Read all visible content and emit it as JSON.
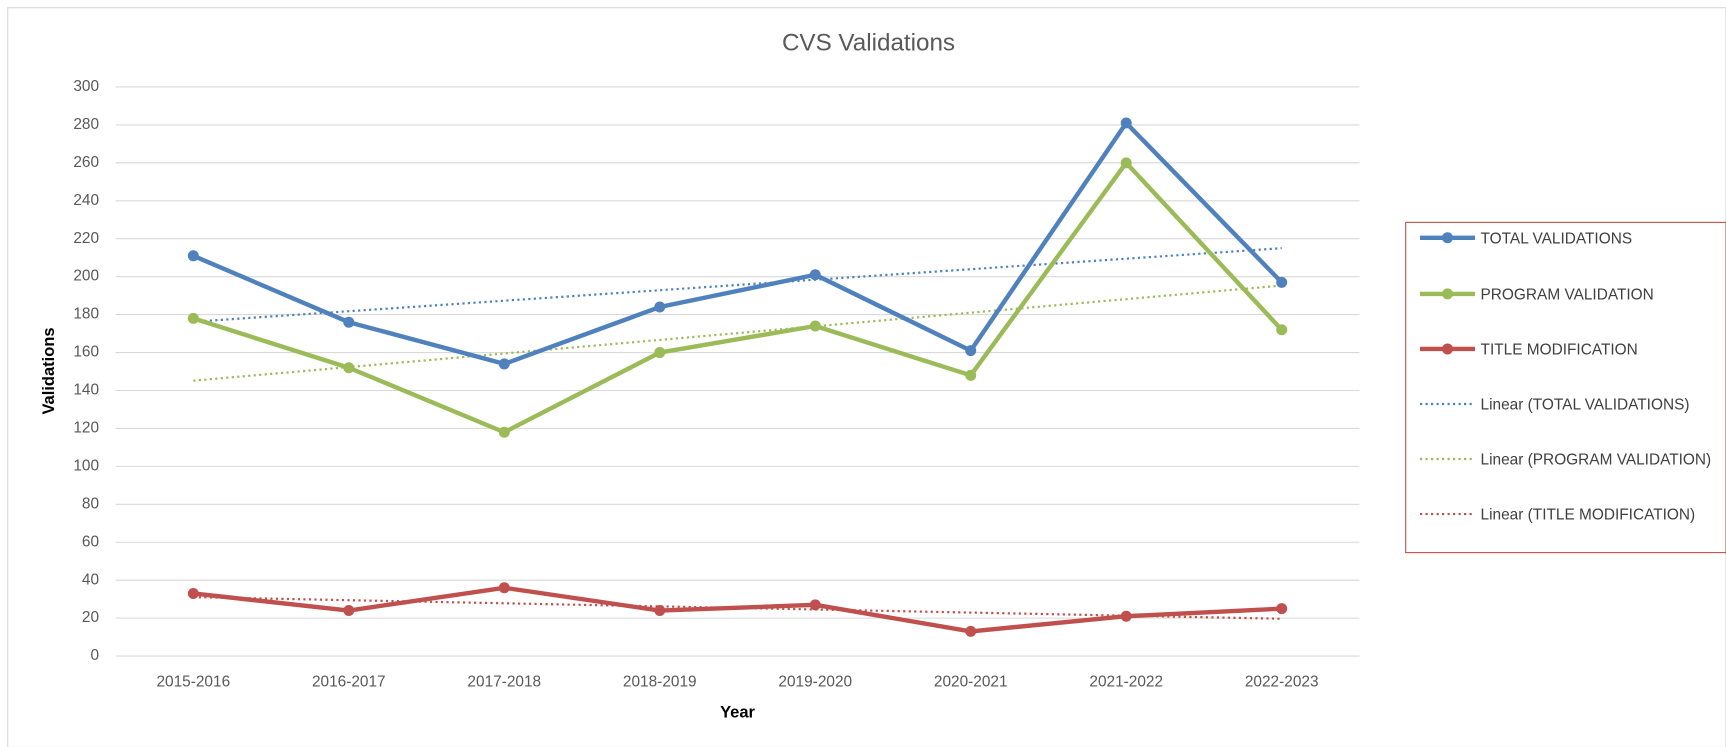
{
  "chart_data": {
    "type": "line",
    "title": "CVS Validations",
    "x_label": "Year",
    "y_label": "Validations",
    "categories": [
      "2015-2016",
      "2016-2017",
      "2017-2018",
      "2018-2019",
      "2019-2020",
      "2020-2021",
      "2021-2022",
      "2022-2023"
    ],
    "series": [
      {
        "name": "TOTAL VALIDATIONS",
        "color": "#4f81bd",
        "values": [
          211,
          176,
          154,
          184,
          201,
          161,
          281,
          197
        ]
      },
      {
        "name": "PROGRAM VALIDATION",
        "color": "#9bbb59",
        "values": [
          178,
          152,
          118,
          160,
          174,
          148,
          260,
          172
        ]
      },
      {
        "name": "TITLE MODIFICATION",
        "color": "#c0504d",
        "values": [
          33,
          24,
          36,
          24,
          27,
          13,
          21,
          25
        ]
      }
    ],
    "trendlines": [
      {
        "name": "Linear (TOTAL VALIDATIONS)",
        "series": 0,
        "color": "#4f81bd"
      },
      {
        "name": "Linear (PROGRAM VALIDATION)",
        "series": 1,
        "color": "#9bbb59"
      },
      {
        "name": "Linear (TITLE MODIFICATION)",
        "series": 2,
        "color": "#c0504d"
      }
    ],
    "ylim": [
      0,
      300
    ],
    "yticks": [
      0,
      20,
      40,
      60,
      80,
      100,
      120,
      140,
      160,
      180,
      200,
      220,
      240,
      260,
      280,
      300
    ],
    "grid": true,
    "legend": "right"
  }
}
